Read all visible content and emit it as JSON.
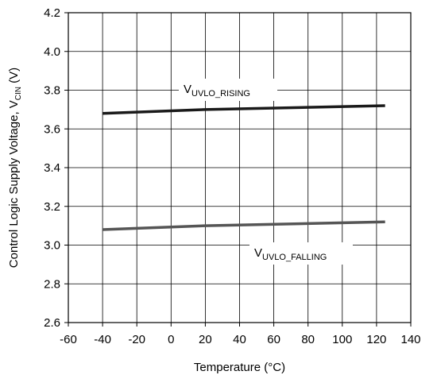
{
  "chart_data": {
    "type": "line",
    "xlabel": "Temperature (°C)",
    "ylabel": {
      "main": "Control Logic Supply Voltage, V",
      "subscript": "CIN",
      "suffix": " (V)"
    },
    "xlim": [
      -60,
      140
    ],
    "ylim": [
      2.6,
      4.2
    ],
    "x_ticks": [
      -60,
      -40,
      -20,
      0,
      20,
      40,
      60,
      80,
      100,
      120,
      140
    ],
    "y_ticks": [
      2.6,
      2.8,
      3.0,
      3.2,
      3.4,
      3.6,
      3.8,
      4.0,
      4.2
    ],
    "x_tick_labels": [
      "-60",
      "-40",
      "-20",
      "0",
      "20",
      "40",
      "60",
      "80",
      "100",
      "120",
      "140"
    ],
    "y_tick_labels": [
      "2.6",
      "2.8",
      "3.0",
      "3.2",
      "3.4",
      "3.6",
      "3.8",
      "4.0",
      "4.2"
    ],
    "grid": true,
    "series": [
      {
        "key": "rising",
        "label_main": "V",
        "label_sub": "UVLO_RISING",
        "color": "#1a1a1a",
        "x": [
          -40,
          20,
          125
        ],
        "y": [
          3.68,
          3.7,
          3.72
        ]
      },
      {
        "key": "falling",
        "label_main": "V",
        "label_sub": "UVLO_FALLING",
        "color": "#555555",
        "x": [
          -40,
          20,
          125
        ],
        "y": [
          3.08,
          3.1,
          3.12
        ]
      }
    ]
  }
}
